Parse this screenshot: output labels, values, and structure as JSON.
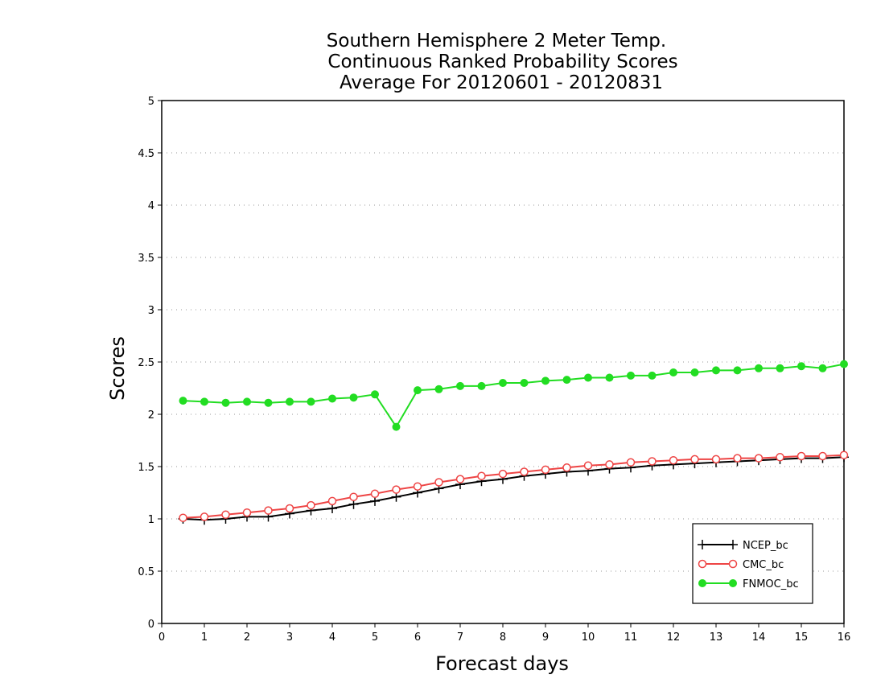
{
  "chart_data": {
    "type": "line",
    "title_lines": [
      "Southern Hemisphere 2 Meter Temp.",
      "Continuous Ranked Probability Scores",
      "Average For 20120601 - 20120831"
    ],
    "xlabel": "Forecast days",
    "ylabel": "Scores",
    "xlim": [
      0,
      16
    ],
    "ylim": [
      0,
      5
    ],
    "xticks": [
      0,
      1,
      2,
      3,
      4,
      5,
      6,
      7,
      8,
      9,
      10,
      11,
      12,
      13,
      14,
      15,
      16
    ],
    "yticks": [
      0,
      0.5,
      1,
      1.5,
      2,
      2.5,
      3,
      3.5,
      4,
      4.5,
      5
    ],
    "grid": true,
    "legend_position": "bottom-right",
    "x": [
      0.5,
      1,
      1.5,
      2,
      2.5,
      3,
      3.5,
      4,
      4.5,
      5,
      5.5,
      6,
      6.5,
      7,
      7.5,
      8,
      8.5,
      9,
      9.5,
      10,
      10.5,
      11,
      11.5,
      12,
      12.5,
      13,
      13.5,
      14,
      14.5,
      15,
      15.5,
      16
    ],
    "series": [
      {
        "name": "NCEP_bc",
        "color": "#000000",
        "marker": "plus",
        "values": [
          1.0,
          0.99,
          1.0,
          1.02,
          1.02,
          1.05,
          1.08,
          1.1,
          1.14,
          1.17,
          1.21,
          1.25,
          1.29,
          1.33,
          1.36,
          1.38,
          1.41,
          1.43,
          1.45,
          1.46,
          1.48,
          1.49,
          1.51,
          1.52,
          1.53,
          1.54,
          1.55,
          1.56,
          1.57,
          1.58,
          1.58,
          1.59
        ]
      },
      {
        "name": "CMC_bc",
        "color": "#ee4444",
        "marker": "open-circle",
        "values": [
          1.01,
          1.02,
          1.04,
          1.06,
          1.08,
          1.1,
          1.13,
          1.17,
          1.21,
          1.24,
          1.28,
          1.31,
          1.35,
          1.38,
          1.41,
          1.43,
          1.45,
          1.47,
          1.49,
          1.51,
          1.52,
          1.54,
          1.55,
          1.56,
          1.57,
          1.57,
          1.58,
          1.58,
          1.59,
          1.6,
          1.6,
          1.61
        ]
      },
      {
        "name": "FNMOC_bc",
        "color": "#22dd22",
        "marker": "filled-circle",
        "values": [
          2.13,
          2.12,
          2.11,
          2.12,
          2.11,
          2.12,
          2.12,
          2.15,
          2.16,
          2.19,
          1.88,
          2.23,
          2.24,
          2.27,
          2.27,
          2.3,
          2.3,
          2.32,
          2.33,
          2.35,
          2.35,
          2.37,
          2.37,
          2.4,
          2.4,
          2.42,
          2.42,
          2.44,
          2.44,
          2.46,
          2.44,
          2.48
        ]
      }
    ]
  }
}
